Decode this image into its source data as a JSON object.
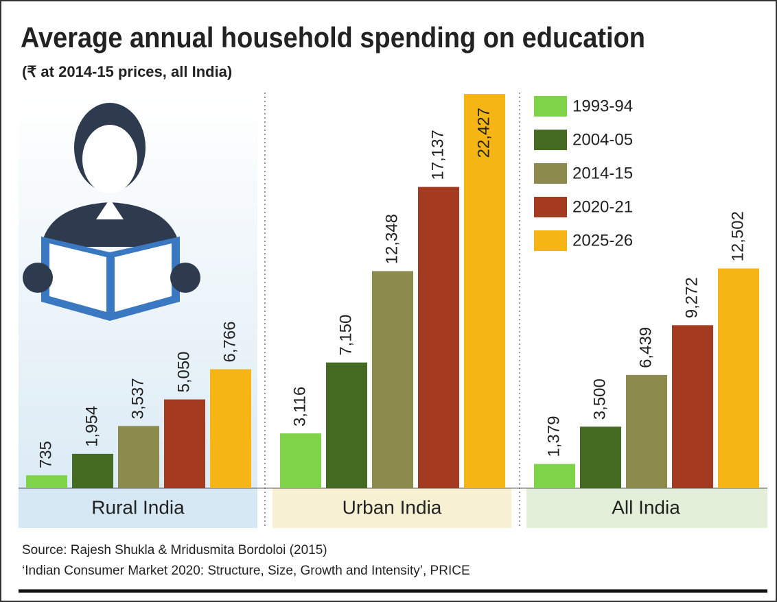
{
  "chart_data": {
    "type": "bar",
    "title": "Average annual household spending on education",
    "subtitle": "(₹ at 2014-15 prices, all India)",
    "categories": [
      "Rural India",
      "Urban India",
      "All India"
    ],
    "series": [
      {
        "name": "1993-94",
        "color": "#7ed348",
        "values": [
          735,
          3116,
          1379
        ],
        "value_labels": [
          "735",
          "3,116",
          "1,379"
        ]
      },
      {
        "name": "2004-05",
        "color": "#456b22",
        "values": [
          1954,
          7150,
          3500
        ],
        "value_labels": [
          "1,954",
          "7,150",
          "3,500"
        ]
      },
      {
        "name": "2014-15",
        "color": "#8c8a4c",
        "values": [
          3537,
          12348,
          6439
        ],
        "value_labels": [
          "3,537",
          "12,348",
          "6,439"
        ]
      },
      {
        "name": "2020-21",
        "color": "#a43b20",
        "values": [
          5050,
          17137,
          9272
        ],
        "value_labels": [
          "5,050",
          "17,137",
          "9,272"
        ]
      },
      {
        "name": "2025-26",
        "color": "#f5b514",
        "values": [
          6766,
          22427,
          12502
        ],
        "value_labels": [
          "6,766",
          "22,427",
          "12,502"
        ]
      }
    ],
    "legend": "top-right",
    "source": [
      "Source: Rajesh Shukla & Mridusmita Bordoloi (2015)",
      "‘Indian Consumer Market 2020: Structure, Size, Growth and Intensity’, PRICE"
    ]
  }
}
